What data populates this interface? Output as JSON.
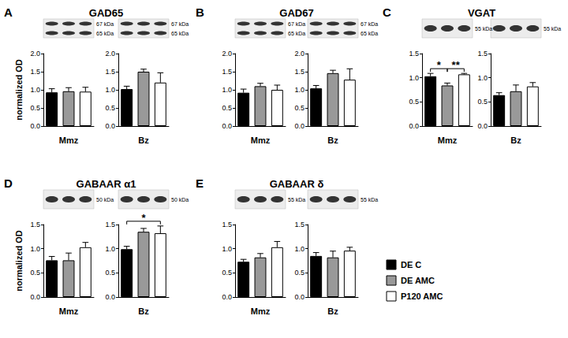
{
  "chart_data": [
    {
      "type": "bar",
      "panel": "A",
      "title": "GAD65",
      "xlabel": "Mmz",
      "ylabel": "normalized OD",
      "categories": [
        "DE C",
        "DE AMC",
        "P120 AMC"
      ],
      "colors": [
        "#000000",
        "#999999",
        "#ffffff"
      ],
      "values": [
        0.93,
        0.96,
        0.95
      ],
      "errors": [
        0.1,
        0.1,
        0.12
      ],
      "ylim": [
        0,
        2
      ],
      "yticks": [
        {
          "value": 0,
          "label": "0.0"
        },
        0.5,
        {
          "value": 1,
          "label": "1.0"
        },
        1.5,
        {
          "value": 2,
          "label": "2.0"
        }
      ],
      "grid": false,
      "tick_labels": "y",
      "blot_labels": [
        "67 kDa",
        "65 kDa"
      ]
    },
    {
      "type": "bar",
      "xlabel": "Bz",
      "categories": [
        "DE C",
        "DE AMC",
        "P120 AMC"
      ],
      "colors": [
        "#000000",
        "#999999",
        "#ffffff"
      ],
      "values": [
        1.02,
        1.5,
        1.2
      ],
      "errors": [
        0.08,
        0.07,
        0.27
      ],
      "ylim": [
        0,
        2
      ],
      "yticks": [
        {
          "value": 0,
          "label": "0.0"
        },
        0.5,
        {
          "value": 1,
          "label": "1.0"
        },
        1.5,
        {
          "value": 2,
          "label": "2.0"
        }
      ],
      "grid": false,
      "tick_labels": "y",
      "blot_labels": [
        "67 kDa",
        "65 kDa"
      ]
    },
    {
      "type": "bar",
      "panel": "B",
      "title": "GAD67",
      "xlabel": "Mmz",
      "categories": [
        "DE C",
        "DE AMC",
        "P120 AMC"
      ],
      "colors": [
        "#000000",
        "#999999",
        "#ffffff"
      ],
      "values": [
        0.92,
        1.1,
        1.0
      ],
      "errors": [
        0.1,
        0.08,
        0.13
      ],
      "ylim": [
        0,
        2
      ],
      "yticks": [
        {
          "value": 0,
          "label": "0.0"
        },
        0.5,
        {
          "value": 1,
          "label": "1.0"
        },
        1.5,
        {
          "value": 2,
          "label": "2.0"
        }
      ],
      "grid": false,
      "tick_labels": "y",
      "blot_labels": [
        "67 kDa",
        "65 kDa"
      ]
    },
    {
      "type": "bar",
      "xlabel": "Bz",
      "categories": [
        "DE C",
        "DE AMC",
        "P120 AMC"
      ],
      "colors": [
        "#000000",
        "#999999",
        "#ffffff"
      ],
      "values": [
        1.04,
        1.46,
        1.28
      ],
      "errors": [
        0.08,
        0.08,
        0.3
      ],
      "ylim": [
        0,
        2
      ],
      "yticks": [
        {
          "value": 0,
          "label": "0.0"
        },
        0.5,
        {
          "value": 1,
          "label": "1.0"
        },
        1.5,
        {
          "value": 2,
          "label": "2.0"
        }
      ],
      "grid": false,
      "tick_labels": "y",
      "blot_labels": [
        "67 kDa",
        "65 kDa"
      ]
    },
    {
      "type": "bar",
      "panel": "C",
      "title": "VGAT",
      "xlabel": "Mmz",
      "categories": [
        "DE C",
        "DE AMC",
        "P120 AMC"
      ],
      "colors": [
        "#000000",
        "#999999",
        "#ffffff"
      ],
      "values": [
        1.03,
        0.84,
        1.07
      ],
      "errors": [
        0.06,
        0.05,
        0.02
      ],
      "ylim": [
        0,
        1.5
      ],
      "yticks": [
        {
          "value": 0,
          "label": "0.0"
        },
        0.5,
        {
          "value": 1,
          "label": "1.0"
        },
        1.5
      ],
      "grid": false,
      "tick_labels": "y",
      "blot_labels": [
        "55 kDa"
      ],
      "annotations": [
        {
          "text": "*",
          "between": [
            "DE C",
            "DE AMC"
          ]
        },
        {
          "text": "**",
          "between": [
            "DE AMC",
            "P120 AMC"
          ]
        }
      ]
    },
    {
      "type": "bar",
      "xlabel": "Bz",
      "categories": [
        "DE C",
        "DE AMC",
        "P120 AMC"
      ],
      "colors": [
        "#000000",
        "#999999",
        "#ffffff"
      ],
      "values": [
        0.64,
        0.72,
        0.82
      ],
      "errors": [
        0.05,
        0.13,
        0.08
      ],
      "ylim": [
        0,
        1.5
      ],
      "yticks": [
        {
          "value": 0,
          "label": "0.0"
        },
        0.5,
        {
          "value": 1,
          "label": "1.0"
        },
        1.5
      ],
      "grid": false,
      "tick_labels": "y",
      "blot_labels": [
        "55 kDa"
      ]
    },
    {
      "type": "bar",
      "panel": "D",
      "title": "GABAAR α1",
      "xlabel": "Mmz",
      "ylabel": "normalized OD",
      "categories": [
        "DE C",
        "DE AMC",
        "P120 AMC"
      ],
      "colors": [
        "#000000",
        "#999999",
        "#ffffff"
      ],
      "values": [
        0.76,
        0.76,
        1.03
      ],
      "errors": [
        0.08,
        0.15,
        0.1
      ],
      "ylim": [
        0,
        1.5
      ],
      "yticks": [
        {
          "value": 0,
          "label": "0.0"
        },
        0.5,
        {
          "value": 1,
          "label": "1.0"
        },
        1.5
      ],
      "grid": false,
      "tick_labels": "y",
      "blot_labels": [
        "50 kDa"
      ]
    },
    {
      "type": "bar",
      "xlabel": "Bz",
      "categories": [
        "DE C",
        "DE AMC",
        "P120 AMC"
      ],
      "colors": [
        "#000000",
        "#999999",
        "#ffffff"
      ],
      "values": [
        0.99,
        1.35,
        1.32
      ],
      "errors": [
        0.06,
        0.07,
        0.15
      ],
      "ylim": [
        0,
        1.5
      ],
      "yticks": [
        {
          "value": 0,
          "label": "0.0"
        },
        0.5,
        {
          "value": 1,
          "label": "1.0"
        },
        1.5
      ],
      "grid": false,
      "tick_labels": "y",
      "blot_labels": [
        "50 kDa"
      ],
      "annotations": [
        {
          "text": "*",
          "between": [
            "DE C",
            "P120 AMC"
          ]
        }
      ]
    },
    {
      "type": "bar",
      "panel": "E",
      "title": "GABAAR δ",
      "xlabel": "Mmz",
      "categories": [
        "DE C",
        "DE AMC",
        "P120 AMC"
      ],
      "colors": [
        "#000000",
        "#999999",
        "#ffffff"
      ],
      "values": [
        0.73,
        0.82,
        1.03
      ],
      "errors": [
        0.05,
        0.08,
        0.12
      ],
      "ylim": [
        0,
        1.5
      ],
      "yticks": [
        {
          "value": 0,
          "label": "0.0"
        },
        0.5,
        {
          "value": 1,
          "label": "1.0"
        },
        1.5
      ],
      "grid": false,
      "tick_labels": "y",
      "blot_labels": [
        "55 kDa"
      ]
    },
    {
      "type": "bar",
      "xlabel": "Bz",
      "categories": [
        "DE C",
        "DE AMC",
        "P120 AMC"
      ],
      "colors": [
        "#000000",
        "#999999",
        "#ffffff"
      ],
      "values": [
        0.85,
        0.82,
        0.96
      ],
      "errors": [
        0.07,
        0.13,
        0.07
      ],
      "ylim": [
        0,
        1.5
      ],
      "yticks": [
        {
          "value": 0,
          "label": "0.0"
        },
        0.5,
        {
          "value": 1,
          "label": "1.0"
        },
        1.5
      ],
      "grid": false,
      "tick_labels": "y",
      "blot_labels": [
        "55 kDa"
      ],
      "legend": "lower right"
    }
  ]
}
